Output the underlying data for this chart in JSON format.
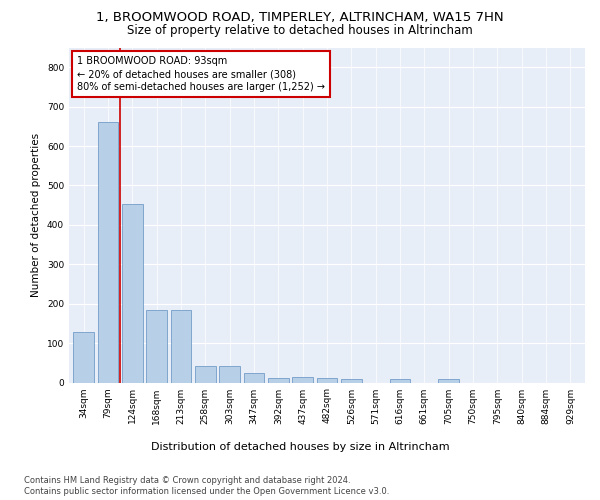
{
  "title1": "1, BROOMWOOD ROAD, TIMPERLEY, ALTRINCHAM, WA15 7HN",
  "title2": "Size of property relative to detached houses in Altrincham",
  "xlabel": "Distribution of detached houses by size in Altrincham",
  "ylabel": "Number of detached properties",
  "categories": [
    "34sqm",
    "79sqm",
    "124sqm",
    "168sqm",
    "213sqm",
    "258sqm",
    "303sqm",
    "347sqm",
    "392sqm",
    "437sqm",
    "482sqm",
    "526sqm",
    "571sqm",
    "616sqm",
    "661sqm",
    "705sqm",
    "750sqm",
    "795sqm",
    "840sqm",
    "884sqm",
    "929sqm"
  ],
  "values": [
    128,
    660,
    452,
    183,
    183,
    43,
    43,
    25,
    12,
    13,
    12,
    10,
    0,
    8,
    0,
    8,
    0,
    0,
    0,
    0,
    0
  ],
  "bar_color": "#b8cfe8",
  "bar_edge_color": "#6090c0",
  "vline_x": 1.5,
  "vline_color": "#cc0000",
  "annotation_box_text": "1 BROOMWOOD ROAD: 93sqm\n← 20% of detached houses are smaller (308)\n80% of semi-detached houses are larger (1,252) →",
  "ylim": [
    0,
    850
  ],
  "yticks": [
    0,
    100,
    200,
    300,
    400,
    500,
    600,
    700,
    800
  ],
  "background_color": "#e8eef8",
  "grid_color": "#ffffff",
  "footer1": "Contains HM Land Registry data © Crown copyright and database right 2024.",
  "footer2": "Contains public sector information licensed under the Open Government Licence v3.0.",
  "title1_fontsize": 9.5,
  "title2_fontsize": 8.5,
  "xlabel_fontsize": 8,
  "ylabel_fontsize": 7.5,
  "tick_fontsize": 6.5,
  "annotation_fontsize": 7,
  "footer_fontsize": 6
}
